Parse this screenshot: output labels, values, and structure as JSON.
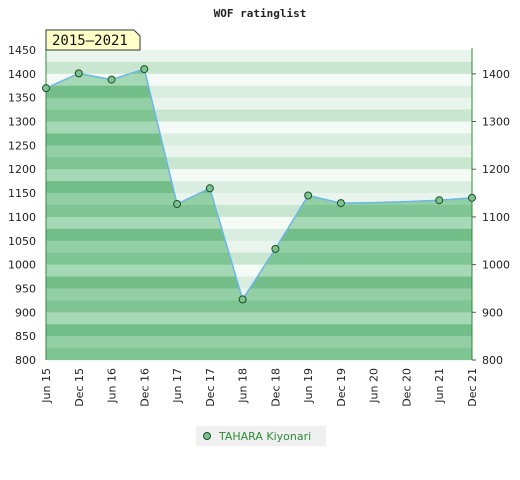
{
  "chart_data": {
    "type": "area",
    "title": "WOF ratinglist",
    "period_badge": "2015–2021",
    "x_categories": [
      "Jun 15",
      "Dec 15",
      "Jun 16",
      "Dec 16",
      "Jun 17",
      "Dec 17",
      "Jun 18",
      "Dec 18",
      "Jun 19",
      "Dec 19",
      "Jun 20",
      "Dec 20",
      "Jun 21",
      "Dec 21"
    ],
    "y_left_ticks": [
      800,
      850,
      900,
      950,
      1000,
      1050,
      1100,
      1150,
      1200,
      1250,
      1300,
      1350,
      1400,
      1450
    ],
    "y_right_ticks": [
      800,
      900,
      1000,
      1100,
      1200,
      1300,
      1400
    ],
    "ylim": [
      800,
      1450
    ],
    "series": [
      {
        "name": "TAHARA Kiyonari",
        "color": "#6db6e8",
        "fill_color": "#7cc38f",
        "points": [
          {
            "x": "Jun 15",
            "y": 1370,
            "marker": true
          },
          {
            "x": "Dec 15",
            "y": 1401,
            "marker": true
          },
          {
            "x": "Jun 16",
            "y": 1388,
            "marker": true
          },
          {
            "x": "Dec 16",
            "y": 1410,
            "marker": true
          },
          {
            "x": "Jun 17",
            "y": 1127,
            "marker": true
          },
          {
            "x": "Dec 17",
            "y": 1160,
            "marker": true
          },
          {
            "x": "Jun 18",
            "y": 927,
            "marker": true
          },
          {
            "x": "Dec 18",
            "y": 1033,
            "marker": true
          },
          {
            "x": "Jun 19",
            "y": 1145,
            "marker": true
          },
          {
            "x": "Dec 19",
            "y": 1129,
            "marker": true
          },
          {
            "x": "Jun 20",
            "y": 1130,
            "marker": false
          },
          {
            "x": "Dec 20",
            "y": 1132,
            "marker": false
          },
          {
            "x": "Jun 21",
            "y": 1135,
            "marker": true
          },
          {
            "x": "Dec 21",
            "y": 1140,
            "marker": true
          }
        ]
      }
    ],
    "legend_position": "bottom-center",
    "grid": "alternating horizontal bands"
  }
}
